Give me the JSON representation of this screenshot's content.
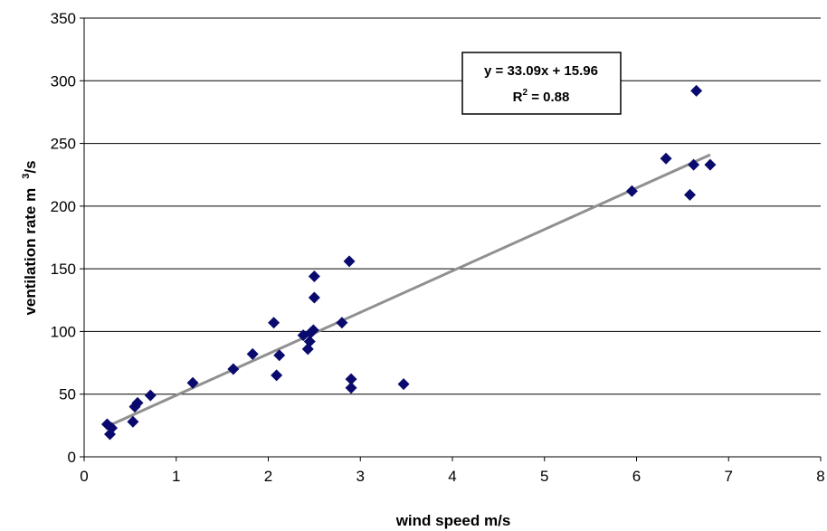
{
  "chart_data": {
    "type": "scatter",
    "xlabel": "wind speed m/s",
    "ylabel_main": "ventilation rate m",
    "ylabel_sup": "3",
    "ylabel_tail": "/s",
    "xlim": [
      0,
      8
    ],
    "ylim": [
      0,
      350
    ],
    "x_ticks": [
      "0",
      "1",
      "2",
      "3",
      "4",
      "5",
      "6",
      "7",
      "8"
    ],
    "y_ticks": [
      "0",
      "50",
      "100",
      "150",
      "200",
      "250",
      "300",
      "350"
    ],
    "grid": "horizontal",
    "legend": "none",
    "series": [
      {
        "color": "#0a0a6e",
        "marker": "diamond",
        "points": [
          {
            "x": 0.25,
            "y": 26
          },
          {
            "x": 0.28,
            "y": 18
          },
          {
            "x": 0.3,
            "y": 23
          },
          {
            "x": 0.53,
            "y": 28
          },
          {
            "x": 0.55,
            "y": 40
          },
          {
            "x": 0.58,
            "y": 43
          },
          {
            "x": 0.72,
            "y": 49
          },
          {
            "x": 1.18,
            "y": 59
          },
          {
            "x": 1.62,
            "y": 70
          },
          {
            "x": 1.83,
            "y": 82
          },
          {
            "x": 2.06,
            "y": 107
          },
          {
            "x": 2.09,
            "y": 65
          },
          {
            "x": 2.12,
            "y": 81
          },
          {
            "x": 2.38,
            "y": 97
          },
          {
            "x": 2.43,
            "y": 86
          },
          {
            "x": 2.45,
            "y": 92
          },
          {
            "x": 2.46,
            "y": 99
          },
          {
            "x": 2.49,
            "y": 101
          },
          {
            "x": 2.5,
            "y": 144
          },
          {
            "x": 2.5,
            "y": 127
          },
          {
            "x": 2.8,
            "y": 107
          },
          {
            "x": 2.88,
            "y": 156
          },
          {
            "x": 2.9,
            "y": 62
          },
          {
            "x": 2.9,
            "y": 55
          },
          {
            "x": 3.47,
            "y": 58
          },
          {
            "x": 5.95,
            "y": 212
          },
          {
            "x": 6.32,
            "y": 238
          },
          {
            "x": 6.58,
            "y": 209
          },
          {
            "x": 6.62,
            "y": 233
          },
          {
            "x": 6.65,
            "y": 292
          },
          {
            "x": 6.8,
            "y": 233
          }
        ]
      }
    ],
    "trendline": {
      "type": "linear",
      "slope": 33.09,
      "intercept": 15.96,
      "x_range": [
        0.25,
        6.8
      ],
      "color": "#909090",
      "equation_label": "y = 33.09x + 15.96",
      "r2_main": "R",
      "r2_sup": "2",
      "r2_tail": " = 0.88"
    }
  }
}
